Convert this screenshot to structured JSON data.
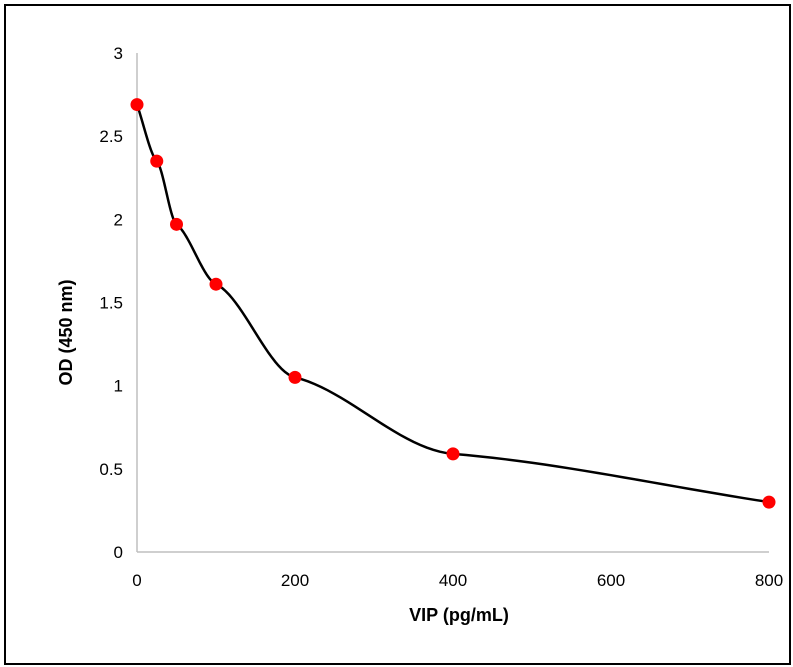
{
  "chart_data": {
    "type": "scatter",
    "title": "",
    "xlabel": "VIP (pg/mL)",
    "ylabel": "OD (450 nm)",
    "xlim": [
      0,
      800
    ],
    "ylim": [
      0,
      3
    ],
    "x_ticks": [
      0,
      200,
      400,
      600,
      800
    ],
    "y_ticks": [
      0,
      0.5,
      1,
      1.5,
      2,
      2.5,
      3
    ],
    "x_tick_labels": [
      "0",
      "200",
      "400",
      "600",
      "800"
    ],
    "y_tick_labels": [
      "0",
      "0.5",
      "1",
      "1.5",
      "2",
      "2.5",
      "3"
    ],
    "grid": false,
    "legend": "none",
    "series": [
      {
        "marker_color": "#ff0000",
        "line_color": "#000000",
        "fit": "smooth curve",
        "points": [
          {
            "x": 0,
            "y": 2.69
          },
          {
            "x": 25,
            "y": 2.35
          },
          {
            "x": 50,
            "y": 1.97
          },
          {
            "x": 100,
            "y": 1.61
          },
          {
            "x": 200,
            "y": 1.05
          },
          {
            "x": 400,
            "y": 0.59
          },
          {
            "x": 800,
            "y": 0.3
          }
        ]
      }
    ]
  }
}
